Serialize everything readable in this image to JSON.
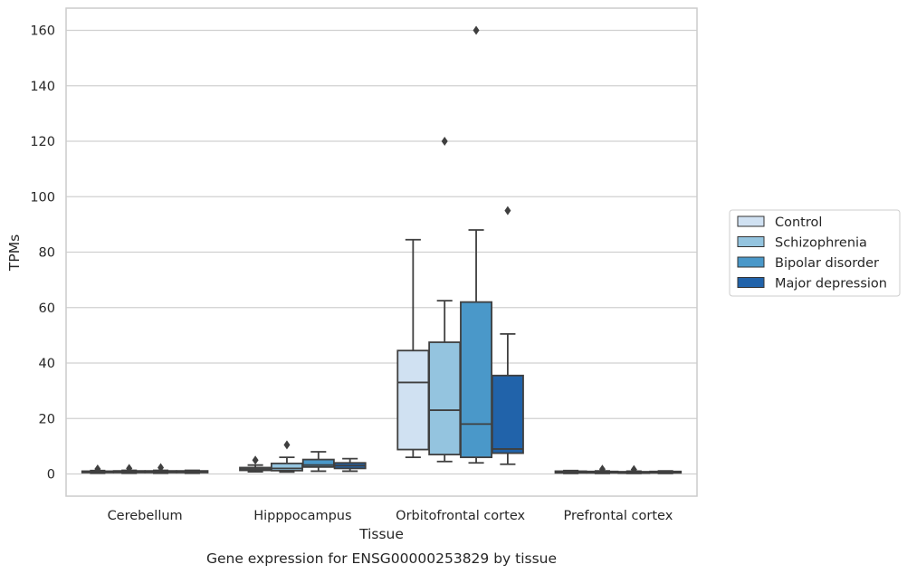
{
  "chart_data": {
    "type": "boxplot",
    "title": "",
    "caption": "Gene expression for ENSG00000253829 by tissue",
    "xlabel": "Tissue",
    "ylabel": "TPMs",
    "ylim": [
      -8,
      168
    ],
    "yticks": [
      0,
      20,
      40,
      60,
      80,
      100,
      120,
      140,
      160
    ],
    "grid": "horizontal",
    "legend_placement": "right",
    "categories": [
      "Cerebellum",
      "Hipppocampus",
      "Orbitofrontal cortex",
      "Prefrontal cortex"
    ],
    "series": [
      {
        "name": "Control",
        "color": "#d0e1f2",
        "boxes": [
          {
            "whislo": 0.3,
            "q1": 0.5,
            "med": 0.8,
            "q3": 1.0,
            "whishi": 1.2,
            "fliers": [
              1.8
            ]
          },
          {
            "whislo": 0.8,
            "q1": 1.3,
            "med": 1.8,
            "q3": 2.3,
            "whishi": 3.2,
            "fliers": [
              5.0
            ]
          },
          {
            "whislo": 6.0,
            "q1": 8.8,
            "med": 33.0,
            "q3": 44.5,
            "whishi": 84.5,
            "fliers": []
          },
          {
            "whislo": 0.2,
            "q1": 0.4,
            "med": 0.7,
            "q3": 1.0,
            "whishi": 1.2,
            "fliers": []
          }
        ]
      },
      {
        "name": "Schizophrenia",
        "color": "#94c4df",
        "boxes": [
          {
            "whislo": 0.3,
            "q1": 0.5,
            "med": 0.8,
            "q3": 1.1,
            "whishi": 1.3,
            "fliers": [
              2.0
            ]
          },
          {
            "whislo": 0.7,
            "q1": 1.2,
            "med": 2.0,
            "q3": 3.8,
            "whishi": 6.0,
            "fliers": [
              10.5
            ]
          },
          {
            "whislo": 4.5,
            "q1": 7.0,
            "med": 23.0,
            "q3": 47.5,
            "whishi": 62.5,
            "fliers": [
              120.0
            ]
          },
          {
            "whislo": 0.2,
            "q1": 0.4,
            "med": 0.6,
            "q3": 0.9,
            "whishi": 1.1,
            "fliers": [
              1.7
            ]
          }
        ]
      },
      {
        "name": "Bipolar disorder",
        "color": "#4a98c9",
        "boxes": [
          {
            "whislo": 0.3,
            "q1": 0.5,
            "med": 0.8,
            "q3": 1.1,
            "whishi": 1.3,
            "fliers": [
              2.3
            ]
          },
          {
            "whislo": 1.0,
            "q1": 2.5,
            "med": 3.2,
            "q3": 5.2,
            "whishi": 8.0,
            "fliers": []
          },
          {
            "whislo": 4.0,
            "q1": 6.0,
            "med": 18.0,
            "q3": 62.0,
            "whishi": 88.0,
            "fliers": [
              160.0
            ]
          },
          {
            "whislo": 0.2,
            "q1": 0.4,
            "med": 0.6,
            "q3": 0.8,
            "whishi": 1.0,
            "fliers": [
              1.6
            ]
          }
        ]
      },
      {
        "name": "Major depression",
        "color": "#2163aa",
        "boxes": [
          {
            "whislo": 0.3,
            "q1": 0.5,
            "med": 0.8,
            "q3": 1.1,
            "whishi": 1.3,
            "fliers": []
          },
          {
            "whislo": 1.0,
            "q1": 2.0,
            "med": 3.0,
            "q3": 4.0,
            "whishi": 5.5,
            "fliers": []
          },
          {
            "whislo": 3.5,
            "q1": 7.5,
            "med": 9.0,
            "q3": 35.5,
            "whishi": 50.5,
            "fliers": [
              95.0
            ]
          },
          {
            "whislo": 0.2,
            "q1": 0.4,
            "med": 0.7,
            "q3": 0.9,
            "whishi": 1.1,
            "fliers": []
          }
        ]
      }
    ]
  }
}
